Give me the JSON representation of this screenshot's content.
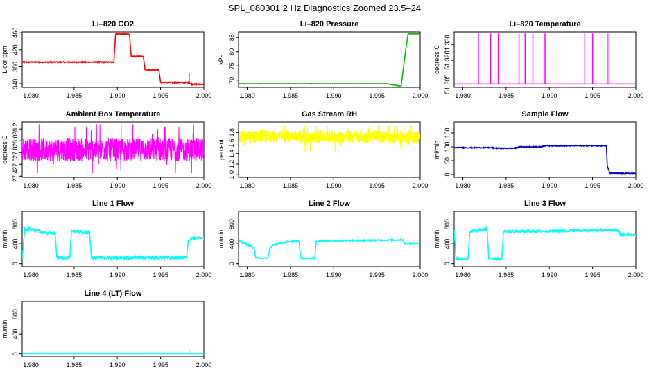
{
  "figure": {
    "title": "SPL_080301  2 Hz Diagnostics Zoomed 23.5–24"
  },
  "chart_data": [
    {
      "type": "line",
      "title": "Li–820 CO2",
      "ylabel": "Licor ppm",
      "color": "#ff0000",
      "xlim": [
        1.979,
        2.0
      ],
      "xticks": [
        "1.980",
        "1.985",
        "1.990",
        "1.995",
        "2.000"
      ],
      "ylim": [
        332,
        462
      ],
      "yticks": [
        "340",
        "380",
        "420",
        "460"
      ],
      "series": [
        {
          "name": "CO2",
          "style": "steps",
          "noise": 1.2,
          "x": [
            1.979,
            1.9896,
            1.9898,
            1.9914,
            1.9916,
            1.993,
            1.9932,
            1.9948,
            1.995,
            1.9983,
            1.9985,
            2.0
          ],
          "y": [
            391,
            391,
            457,
            457,
            404,
            404,
            373,
            373,
            343,
            343,
            339,
            339
          ]
        }
      ],
      "spikes": [
        {
          "x": 1.9983,
          "y0": 343,
          "y1": 365
        }
      ]
    },
    {
      "type": "line",
      "title": "Li–820 Pressure",
      "ylabel": "kPa",
      "color": "#00bb00",
      "xlim": [
        1.979,
        2.0
      ],
      "xticks": [
        "1.980",
        "1.985",
        "1.990",
        "1.995",
        "2.000"
      ],
      "ylim": [
        67.5,
        87
      ],
      "yticks": [
        "70",
        "75",
        "80",
        "85"
      ],
      "series": [
        {
          "name": "Pressure",
          "style": "steps",
          "noise": 0.05,
          "x": [
            1.979,
            1.996,
            1.9962,
            1.9975,
            1.9978,
            1.9983,
            1.9986,
            2.0
          ],
          "y": [
            68.7,
            68.7,
            68.7,
            68.0,
            68.0,
            80.0,
            86.3,
            86.3
          ]
        }
      ]
    },
    {
      "type": "line",
      "title": "Li–820 Temperature",
      "ylabel": "degrees C",
      "color": "#ff00ff",
      "xlim": [
        1.979,
        2.0
      ],
      "xticks": [
        "1.980",
        "1.985",
        "1.990",
        "1.995",
        "2.000"
      ],
      "ylim": [
        51.303,
        51.338
      ],
      "yticks": [
        "51.305",
        "51.320",
        "51.330"
      ],
      "baseline": 51.305,
      "spikes": [
        {
          "x": 1.9818,
          "y0": 51.305,
          "y1": 51.337
        },
        {
          "x": 1.9832,
          "y0": 51.305,
          "y1": 51.337
        },
        {
          "x": 1.9841,
          "y0": 51.305,
          "y1": 51.337
        },
        {
          "x": 1.9865,
          "y0": 51.305,
          "y1": 51.337
        },
        {
          "x": 1.9872,
          "y0": 51.305,
          "y1": 51.337
        },
        {
          "x": 1.9881,
          "y0": 51.305,
          "y1": 51.337
        },
        {
          "x": 1.9895,
          "y0": 51.305,
          "y1": 51.337
        },
        {
          "x": 1.9941,
          "y0": 51.305,
          "y1": 51.337
        },
        {
          "x": 1.995,
          "y0": 51.305,
          "y1": 51.337
        },
        {
          "x": 1.9967,
          "y0": 51.305,
          "y1": 51.337
        },
        {
          "x": 1.9969,
          "y0": 51.305,
          "y1": 51.337
        }
      ]
    },
    {
      "type": "line",
      "title": "Ambient Box Temperature",
      "ylabel": "degrees C",
      "color": "#ff00ff",
      "xlim": [
        1.979,
        2.0
      ],
      "xticks": [
        "1.980",
        "1.985",
        "1.990",
        "1.995",
        "2.000"
      ],
      "ylim": [
        27.38,
        28.32
      ],
      "yticks": [
        "27.4",
        "27.6",
        "27.8",
        "28.0",
        "28.2"
      ],
      "series": [
        {
          "name": "Box Temp",
          "style": "noisy",
          "x": [
            1.979,
            2.0
          ],
          "y": [
            27.85,
            27.85
          ],
          "noise": 0.2,
          "clip": [
            27.45,
            28.28
          ]
        }
      ]
    },
    {
      "type": "line",
      "title": "Gas Stream RH",
      "ylabel": "percent",
      "color": "#ffff00",
      "xlim": [
        1.979,
        2.0
      ],
      "xticks": [
        "1.980",
        "1.985",
        "1.990",
        "1.995",
        "2.000"
      ],
      "ylim": [
        0.95,
        2.0
      ],
      "yticks": [
        "1.0",
        "1.2",
        "1.4",
        "1.6",
        "1.8"
      ],
      "series": [
        {
          "name": "RH",
          "style": "noisy",
          "x": [
            1.979,
            2.0
          ],
          "y": [
            1.72,
            1.72
          ],
          "noise": 0.12,
          "clip": [
            1.0,
            1.92
          ]
        }
      ]
    },
    {
      "type": "line",
      "title": "Sample Flow",
      "ylabel": "ml/min",
      "color": "#0000cc",
      "xlim": [
        1.979,
        2.0
      ],
      "xticks": [
        "1.980",
        "1.985",
        "1.990",
        "1.995",
        "2.000"
      ],
      "ylim": [
        -10,
        190
      ],
      "yticks": [
        "0",
        "50",
        "100",
        "150"
      ],
      "series": [
        {
          "name": "Sample Flow",
          "style": "steps",
          "noise": 1.5,
          "x": [
            1.979,
            1.9835,
            1.984,
            1.986,
            1.9865,
            1.989,
            1.9895,
            1.9966,
            1.9967,
            1.997,
            2.0
          ],
          "y": [
            97,
            97,
            95,
            95,
            100,
            100,
            104,
            104,
            30,
            5,
            4
          ]
        }
      ]
    },
    {
      "type": "line",
      "title": "Line 1 Flow",
      "ylabel": "ml/min",
      "color": "#00ffff",
      "xlim": [
        1.979,
        2.0
      ],
      "xticks": [
        "1.980",
        "1.985",
        "1.990",
        "1.995",
        "2.000"
      ],
      "ylim": [
        -60,
        1060
      ],
      "yticks": [
        "0",
        "400",
        "800"
      ],
      "series": [
        {
          "name": "Line 1",
          "style": "steps",
          "noise": 30,
          "x": [
            1.979,
            1.9793,
            1.98,
            1.981,
            1.9818,
            1.9828,
            1.983,
            1.9845,
            1.9847,
            1.9868,
            1.987,
            1.998,
            1.9982,
            1.9985,
            2.0
          ],
          "y": [
            120,
            690,
            700,
            650,
            620,
            620,
            120,
            120,
            660,
            620,
            120,
            120,
            450,
            520,
            520
          ]
        }
      ]
    },
    {
      "type": "line",
      "title": "Line 2 Flow",
      "ylabel": "ml/min",
      "color": "#00ffff",
      "xlim": [
        1.979,
        2.0
      ],
      "xticks": [
        "1.980",
        "1.985",
        "1.990",
        "1.995",
        "2.000"
      ],
      "ylim": [
        -60,
        1060
      ],
      "yticks": [
        "0",
        "400",
        "800"
      ],
      "series": [
        {
          "name": "Line 2",
          "style": "steps",
          "noise": 12,
          "x": [
            1.979,
            1.98,
            1.9804,
            1.9808,
            1.981,
            1.9824,
            1.9826,
            1.983,
            1.9846,
            1.986,
            1.9862,
            1.9878,
            1.988,
            1.998,
            1.9982,
            2.0
          ],
          "y": [
            460,
            390,
            360,
            300,
            110,
            110,
            300,
            380,
            440,
            460,
            110,
            110,
            460,
            480,
            400,
            400
          ]
        }
      ]
    },
    {
      "type": "line",
      "title": "Line 3 Flow",
      "ylabel": "ml/min",
      "color": "#00ffff",
      "xlim": [
        1.979,
        2.0
      ],
      "xticks": [
        "1.980",
        "1.985",
        "1.990",
        "1.995",
        "2.000"
      ],
      "ylim": [
        -60,
        1060
      ],
      "yticks": [
        "0",
        "400",
        "800"
      ],
      "series": [
        {
          "name": "Line 3",
          "style": "steps",
          "noise": 25,
          "x": [
            1.979,
            1.9792,
            1.9794,
            1.9806,
            1.9808,
            1.9828,
            1.983,
            1.9845,
            1.9847,
            1.998,
            1.9982,
            2.0
          ],
          "y": [
            700,
            100,
            100,
            100,
            650,
            700,
            100,
            100,
            650,
            680,
            580,
            580
          ]
        }
      ]
    },
    {
      "type": "line",
      "title": "Line 4 (LT) Flow",
      "ylabel": "ml/min",
      "color": "#00ffff",
      "xlim": [
        1.979,
        2.0
      ],
      "xticks": [
        "1.980",
        "1.985",
        "1.990",
        "1.995",
        "2.000"
      ],
      "ylim": [
        -60,
        1060
      ],
      "yticks": [
        "0",
        "400",
        "800"
      ],
      "series": [
        {
          "name": "Line 4",
          "style": "steps",
          "noise": 1,
          "x": [
            1.979,
            2.0
          ],
          "y": [
            5,
            5
          ]
        }
      ],
      "spikes": [
        {
          "x": 1.9983,
          "y0": 5,
          "y1": 80
        }
      ]
    }
  ]
}
